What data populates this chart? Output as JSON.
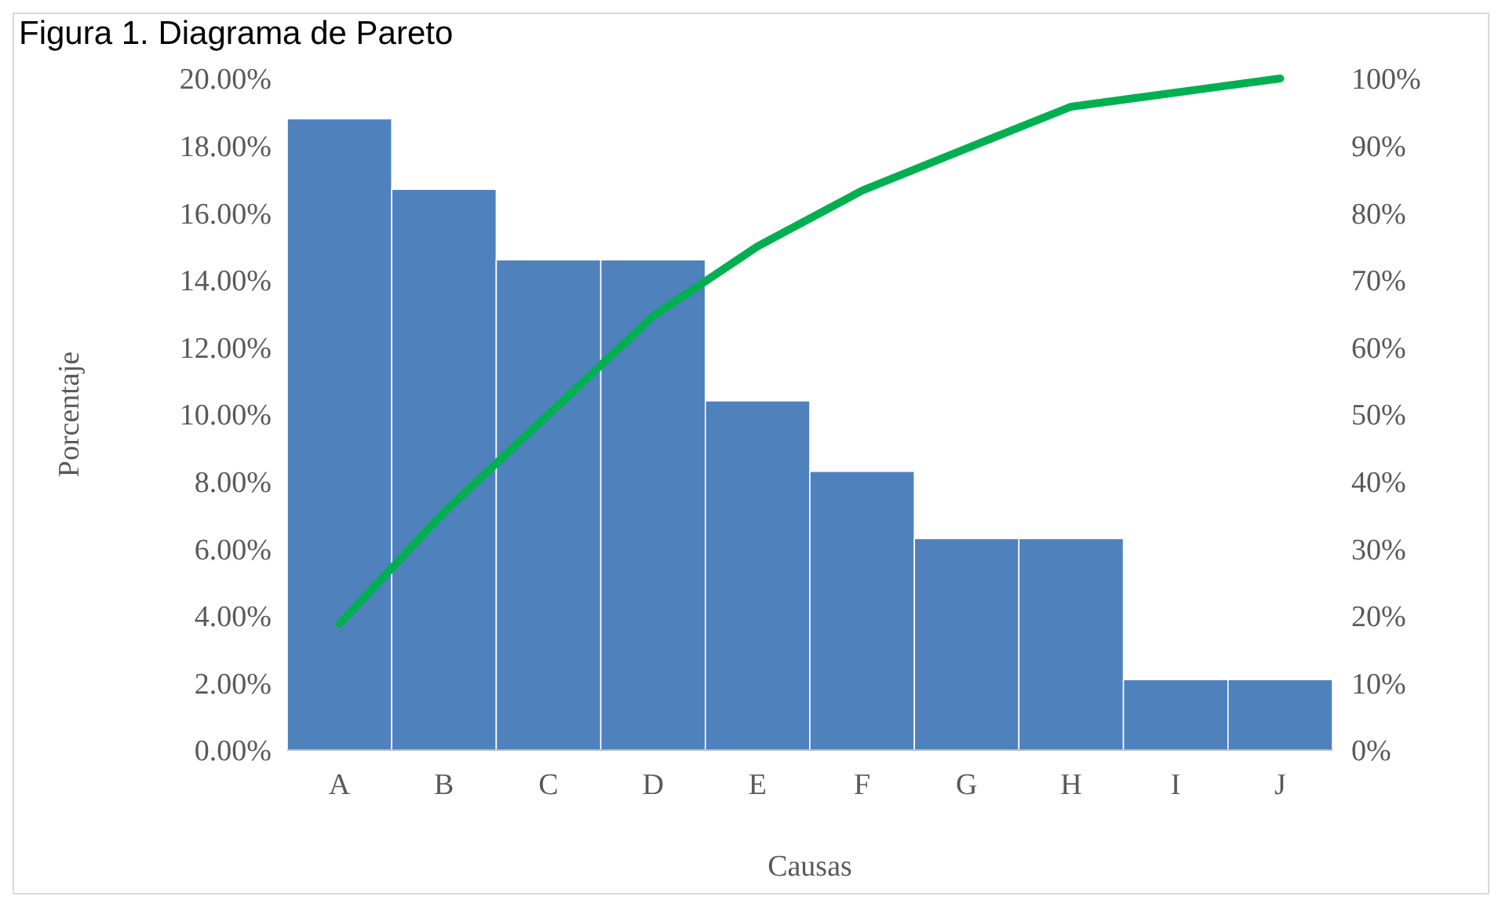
{
  "chart_data": {
    "type": "bar",
    "title": "Figura 1. Diagrama de Pareto",
    "xlabel": "Causas",
    "ylabel": "Porcentaje",
    "categories": [
      "A",
      "B",
      "C",
      "D",
      "E",
      "F",
      "G",
      "H",
      "I",
      "J"
    ],
    "series": [
      {
        "color": "#4f81bd",
        "values": [
          18.8,
          16.7,
          14.6,
          14.6,
          10.4,
          8.3,
          6.3,
          6.3,
          2.1,
          2.1
        ]
      },
      {
        "type": "line",
        "axis": "y2",
        "color": "#00b050",
        "values": [
          18.8,
          35.4,
          50,
          64.6,
          75,
          83.3,
          89.6,
          95.8,
          97.9,
          100
        ]
      }
    ],
    "ylim": [
      0,
      20
    ],
    "yticks": [
      {
        "value": 0,
        "label": "0.00%"
      },
      {
        "value": 2,
        "label": "2.00%"
      },
      {
        "value": 4,
        "label": "4.00%"
      },
      {
        "value": 6,
        "label": "6.00%"
      },
      {
        "value": 8,
        "label": "8.00%"
      },
      {
        "value": 10,
        "label": "10.00%"
      },
      {
        "value": 12,
        "label": "12.00%"
      },
      {
        "value": 14,
        "label": "14.00%"
      },
      {
        "value": 16,
        "label": "16.00%"
      },
      {
        "value": 18,
        "label": "18.00%"
      },
      {
        "value": 20,
        "label": "20.00%"
      }
    ],
    "y2lim": [
      0,
      100
    ],
    "y2ticks": [
      {
        "value": 0,
        "label": "0%"
      },
      {
        "value": 10,
        "label": "10%"
      },
      {
        "value": 20,
        "label": "20%"
      },
      {
        "value": 30,
        "label": "30%"
      },
      {
        "value": 40,
        "label": "40%"
      },
      {
        "value": 50,
        "label": "50%"
      },
      {
        "value": 60,
        "label": "60%"
      },
      {
        "value": 70,
        "label": "70%"
      },
      {
        "value": 80,
        "label": "80%"
      },
      {
        "value": 90,
        "label": "90%"
      },
      {
        "value": 100,
        "label": "100%"
      }
    ],
    "grid": false,
    "line_style": "solid"
  }
}
